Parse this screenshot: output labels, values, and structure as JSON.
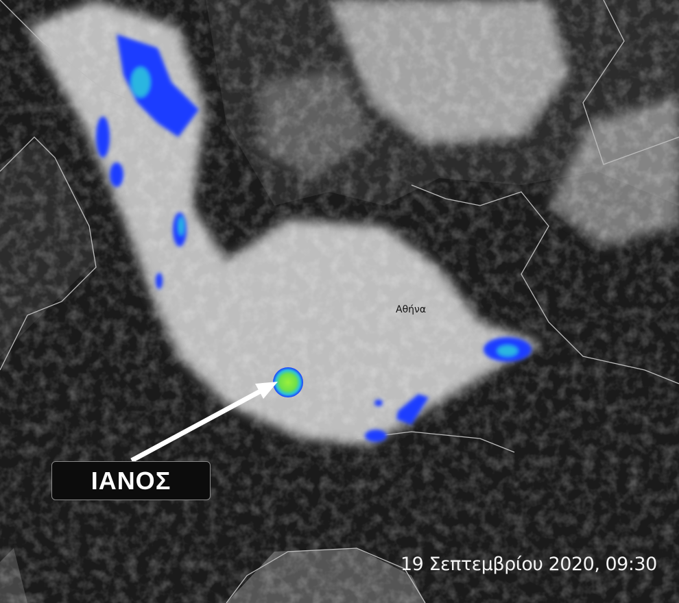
{
  "image": {
    "type": "satellite-infrared-with-precipitation-overlay",
    "storm_label": "ΙΑΝΟΣ",
    "city_label": "Αθήνα",
    "timestamp": "19 Σεπτεμβρίου 2020, 09:30",
    "colors": {
      "background_sea": "#1a1a1a",
      "cloud": "#e8e8e8",
      "coastline": "#bdbdbd",
      "precip_low": "#1a3cff",
      "precip_mid": "#29b6e0",
      "precip_high": "#8ee83a",
      "arrow": "#ffffff",
      "label_box": "#0c0c0c"
    }
  }
}
